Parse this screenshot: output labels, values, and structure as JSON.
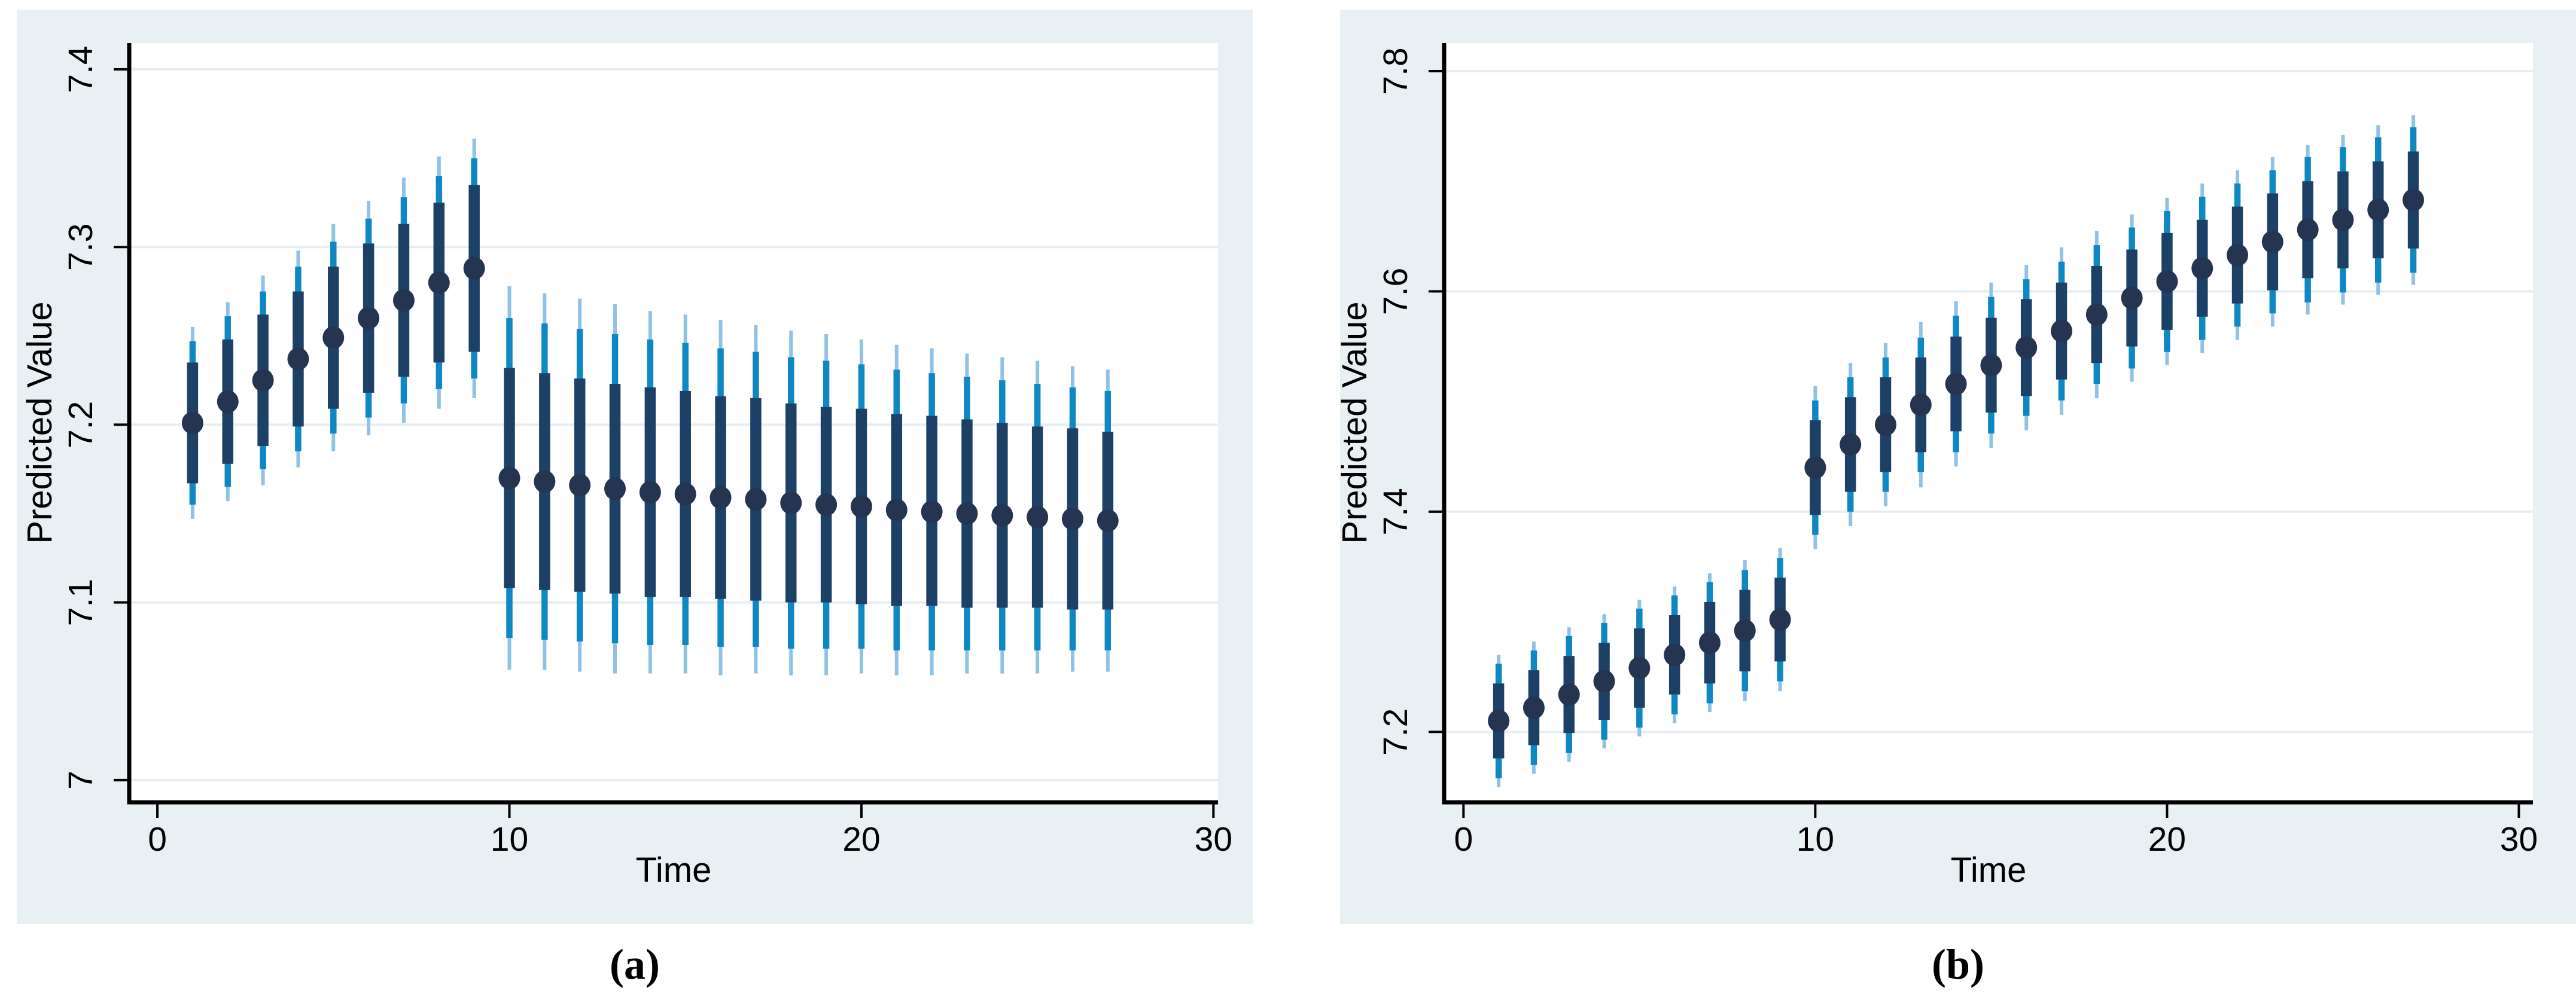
{
  "colors": {
    "panel_bg": "#e9f0f3",
    "plot_bg": "#ffffff",
    "grid": "#e7eef3",
    "axis": "#000000",
    "text": "#000000",
    "ci_outer": "#90c2e6",
    "ci_mid": "#0e87c2",
    "ci_inner": "#1d4166",
    "marker": "#253450"
  },
  "panels": [
    {
      "id": "a",
      "caption": "(a)",
      "xlabel": "Time",
      "ylabel": "Predicted Value",
      "chart_data": {
        "type": "scatter-ci",
        "xlabel": "Time",
        "ylabel": "Predicted Value",
        "xlim": [
          -0.8,
          30.13
        ],
        "ylim": [
          6.9875,
          7.4148
        ],
        "grid": true,
        "xticks": {
          "values": [
            0,
            10,
            20,
            30
          ],
          "labels": [
            "0",
            "10",
            "20",
            "30"
          ]
        },
        "yticks": {
          "values": [
            7.0,
            7.1,
            7.2,
            7.3,
            7.4
          ],
          "labels": [
            "7",
            "7.1",
            "7.2",
            "7.3",
            "7.4"
          ]
        },
        "x": [
          1,
          2,
          3,
          4,
          5,
          6,
          7,
          8,
          9,
          10,
          11,
          12,
          13,
          14,
          15,
          16,
          17,
          18,
          19,
          20,
          21,
          22,
          23,
          24,
          25,
          26,
          27
        ],
        "y": [
          7.201,
          7.213,
          7.225,
          7.237,
          7.249,
          7.26,
          7.27,
          7.28,
          7.288,
          7.17,
          7.168,
          7.166,
          7.164,
          7.162,
          7.161,
          7.159,
          7.158,
          7.156,
          7.155,
          7.154,
          7.152,
          7.151,
          7.15,
          7.149,
          7.148,
          7.147,
          7.146
        ],
        "ci_inner_lo": [
          7.167,
          7.178,
          7.188,
          7.199,
          7.209,
          7.218,
          7.227,
          7.235,
          7.241,
          7.108,
          7.107,
          7.106,
          7.105,
          7.103,
          7.103,
          7.102,
          7.101,
          7.1,
          7.1,
          7.099,
          7.098,
          7.098,
          7.097,
          7.097,
          7.097,
          7.096,
          7.096
        ],
        "ci_inner_hi": [
          7.235,
          7.248,
          7.262,
          7.275,
          7.289,
          7.302,
          7.313,
          7.325,
          7.335,
          7.232,
          7.229,
          7.226,
          7.223,
          7.221,
          7.219,
          7.216,
          7.215,
          7.212,
          7.21,
          7.209,
          7.206,
          7.205,
          7.203,
          7.201,
          7.199,
          7.198,
          7.196
        ],
        "ci_mid_lo": [
          7.155,
          7.165,
          7.175,
          7.185,
          7.195,
          7.204,
          7.212,
          7.22,
          7.226,
          7.08,
          7.079,
          7.078,
          7.077,
          7.076,
          7.076,
          7.075,
          7.075,
          7.074,
          7.074,
          7.074,
          7.073,
          7.073,
          7.073,
          7.073,
          7.073,
          7.073,
          7.073
        ],
        "ci_mid_hi": [
          7.247,
          7.261,
          7.275,
          7.289,
          7.303,
          7.316,
          7.328,
          7.34,
          7.35,
          7.26,
          7.257,
          7.254,
          7.251,
          7.248,
          7.246,
          7.243,
          7.241,
          7.238,
          7.236,
          7.234,
          7.231,
          7.229,
          7.227,
          7.225,
          7.223,
          7.221,
          7.219
        ],
        "ci_outer_lo": [
          7.147,
          7.157,
          7.166,
          7.176,
          7.185,
          7.194,
          7.201,
          7.209,
          7.215,
          7.062,
          7.062,
          7.061,
          7.06,
          7.06,
          7.06,
          7.059,
          7.06,
          7.059,
          7.059,
          7.06,
          7.059,
          7.059,
          7.06,
          7.06,
          7.06,
          7.061,
          7.061
        ],
        "ci_outer_hi": [
          7.255,
          7.269,
          7.284,
          7.298,
          7.313,
          7.326,
          7.339,
          7.351,
          7.361,
          7.278,
          7.274,
          7.271,
          7.268,
          7.264,
          7.262,
          7.259,
          7.256,
          7.253,
          7.251,
          7.248,
          7.245,
          7.243,
          7.24,
          7.238,
          7.236,
          7.233,
          7.231
        ]
      }
    },
    {
      "id": "b",
      "caption": "(b)",
      "xlabel": "Time",
      "ylabel": "Predicted Value",
      "chart_data": {
        "type": "scatter-ci",
        "xlabel": "Time",
        "ylabel": "Predicted Value",
        "xlim": [
          -0.55,
          30.4
        ],
        "ylim": [
          7.1361,
          7.8255
        ],
        "grid": true,
        "xticks": {
          "values": [
            0,
            10,
            20,
            30
          ],
          "labels": [
            "0",
            "10",
            "20",
            "30"
          ]
        },
        "yticks": {
          "values": [
            7.2,
            7.4,
            7.6,
            7.8
          ],
          "labels": [
            "7.2",
            "7.4",
            "7.6",
            "7.8"
          ]
        },
        "x": [
          1,
          2,
          3,
          4,
          5,
          6,
          7,
          8,
          9,
          10,
          11,
          12,
          13,
          14,
          15,
          16,
          17,
          18,
          19,
          20,
          21,
          22,
          23,
          24,
          25,
          26,
          27
        ],
        "y": [
          7.21,
          7.222,
          7.234,
          7.246,
          7.258,
          7.27,
          7.281,
          7.292,
          7.302,
          7.44,
          7.461,
          7.479,
          7.497,
          7.516,
          7.533,
          7.549,
          7.564,
          7.579,
          7.594,
          7.609,
          7.621,
          7.633,
          7.645,
          7.656,
          7.665,
          7.674,
          7.683
        ],
        "ci_inner_lo": [
          7.176,
          7.188,
          7.199,
          7.211,
          7.222,
          7.234,
          7.244,
          7.255,
          7.264,
          7.397,
          7.418,
          7.436,
          7.454,
          7.473,
          7.49,
          7.505,
          7.52,
          7.535,
          7.55,
          7.565,
          7.577,
          7.589,
          7.601,
          7.612,
          7.621,
          7.63,
          7.639
        ],
        "ci_inner_hi": [
          7.244,
          7.256,
          7.269,
          7.281,
          7.294,
          7.306,
          7.318,
          7.329,
          7.34,
          7.483,
          7.504,
          7.522,
          7.54,
          7.559,
          7.576,
          7.593,
          7.608,
          7.623,
          7.638,
          7.653,
          7.665,
          7.677,
          7.689,
          7.7,
          7.709,
          7.718,
          7.727
        ],
        "ci_mid_lo": [
          7.158,
          7.17,
          7.181,
          7.193,
          7.204,
          7.216,
          7.226,
          7.237,
          7.246,
          7.379,
          7.4,
          7.418,
          7.436,
          7.454,
          7.471,
          7.487,
          7.501,
          7.516,
          7.53,
          7.545,
          7.556,
          7.568,
          7.58,
          7.59,
          7.599,
          7.608,
          7.617
        ],
        "ci_mid_hi": [
          7.262,
          7.274,
          7.287,
          7.299,
          7.312,
          7.324,
          7.336,
          7.347,
          7.358,
          7.501,
          7.522,
          7.54,
          7.558,
          7.578,
          7.595,
          7.611,
          7.627,
          7.642,
          7.658,
          7.673,
          7.686,
          7.698,
          7.71,
          7.722,
          7.731,
          7.74,
          7.749
        ],
        "ci_outer_lo": [
          7.15,
          7.162,
          7.173,
          7.185,
          7.196,
          7.208,
          7.218,
          7.228,
          7.237,
          7.366,
          7.387,
          7.405,
          7.422,
          7.441,
          7.458,
          7.474,
          7.488,
          7.503,
          7.518,
          7.533,
          7.544,
          7.556,
          7.568,
          7.579,
          7.588,
          7.597,
          7.606
        ],
        "ci_outer_hi": [
          7.27,
          7.282,
          7.295,
          7.307,
          7.32,
          7.332,
          7.344,
          7.356,
          7.367,
          7.514,
          7.535,
          7.553,
          7.572,
          7.591,
          7.608,
          7.624,
          7.64,
          7.655,
          7.67,
          7.685,
          7.698,
          7.71,
          7.722,
          7.733,
          7.742,
          7.751,
          7.76
        ]
      }
    }
  ]
}
